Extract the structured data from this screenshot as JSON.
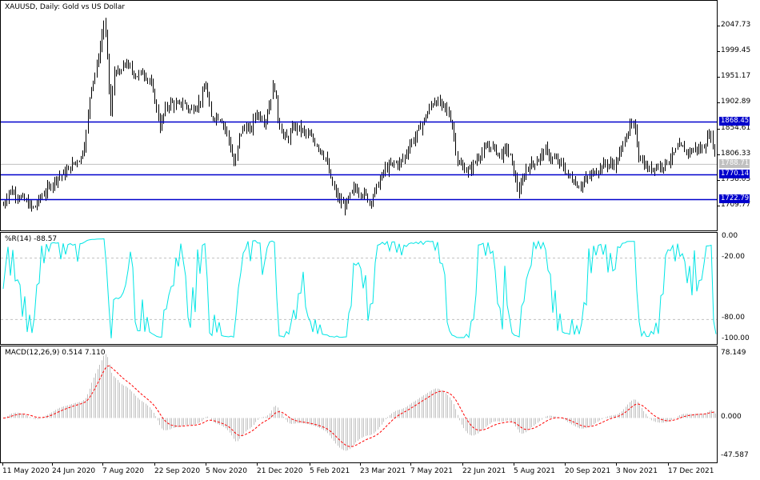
{
  "price_pane": {
    "symbol": "XAUUSD",
    "timeframe": "Daily",
    "description": "Gold vs US Dollar",
    "title_text": "XAUUSD, Daily:  Gold vs US Dollar",
    "y_labels": [
      "2047.73",
      "1999.45",
      "1951.17",
      "1902.89",
      "1854.61",
      "1806.33",
      "1758.05",
      "1709.77"
    ],
    "hlines": [
      {
        "value": "1868.45",
        "color": "#0000cc"
      },
      {
        "value": "1770.14",
        "color": "#0000cc"
      },
      {
        "value": "1722.79",
        "color": "#0000cc"
      }
    ],
    "current_price": "1788.71"
  },
  "wpr_pane": {
    "title_text": "%R(14) -88.57",
    "name": "%R(14)",
    "value": "-88.57",
    "y_labels": [
      "0.00",
      "-20.00",
      "-80.00",
      "-100.00"
    ],
    "line_color": "#00e5e5"
  },
  "macd_pane": {
    "title_text": "MACD(12,26,9) 0.514 7.110",
    "name": "MACD(12,26,9)",
    "macd": "0.514",
    "signal": "7.110",
    "y_labels": [
      "78.149",
      "0.000",
      "-47.587"
    ],
    "hist_color": "#c0c0c0",
    "signal_color": "#ff0000"
  },
  "x_axis": {
    "labels": [
      "11 May 2020",
      "24 Jun 2020",
      "7 Aug 2020",
      "22 Sep 2020",
      "5 Nov 2020",
      "21 Dec 2020",
      "5 Feb 2021",
      "23 Mar 2021",
      "7 May 2021",
      "22 Jun 2021",
      "5 Aug 2021",
      "20 Sep 2021",
      "3 Nov 2021",
      "17 Dec 2021"
    ]
  }
}
